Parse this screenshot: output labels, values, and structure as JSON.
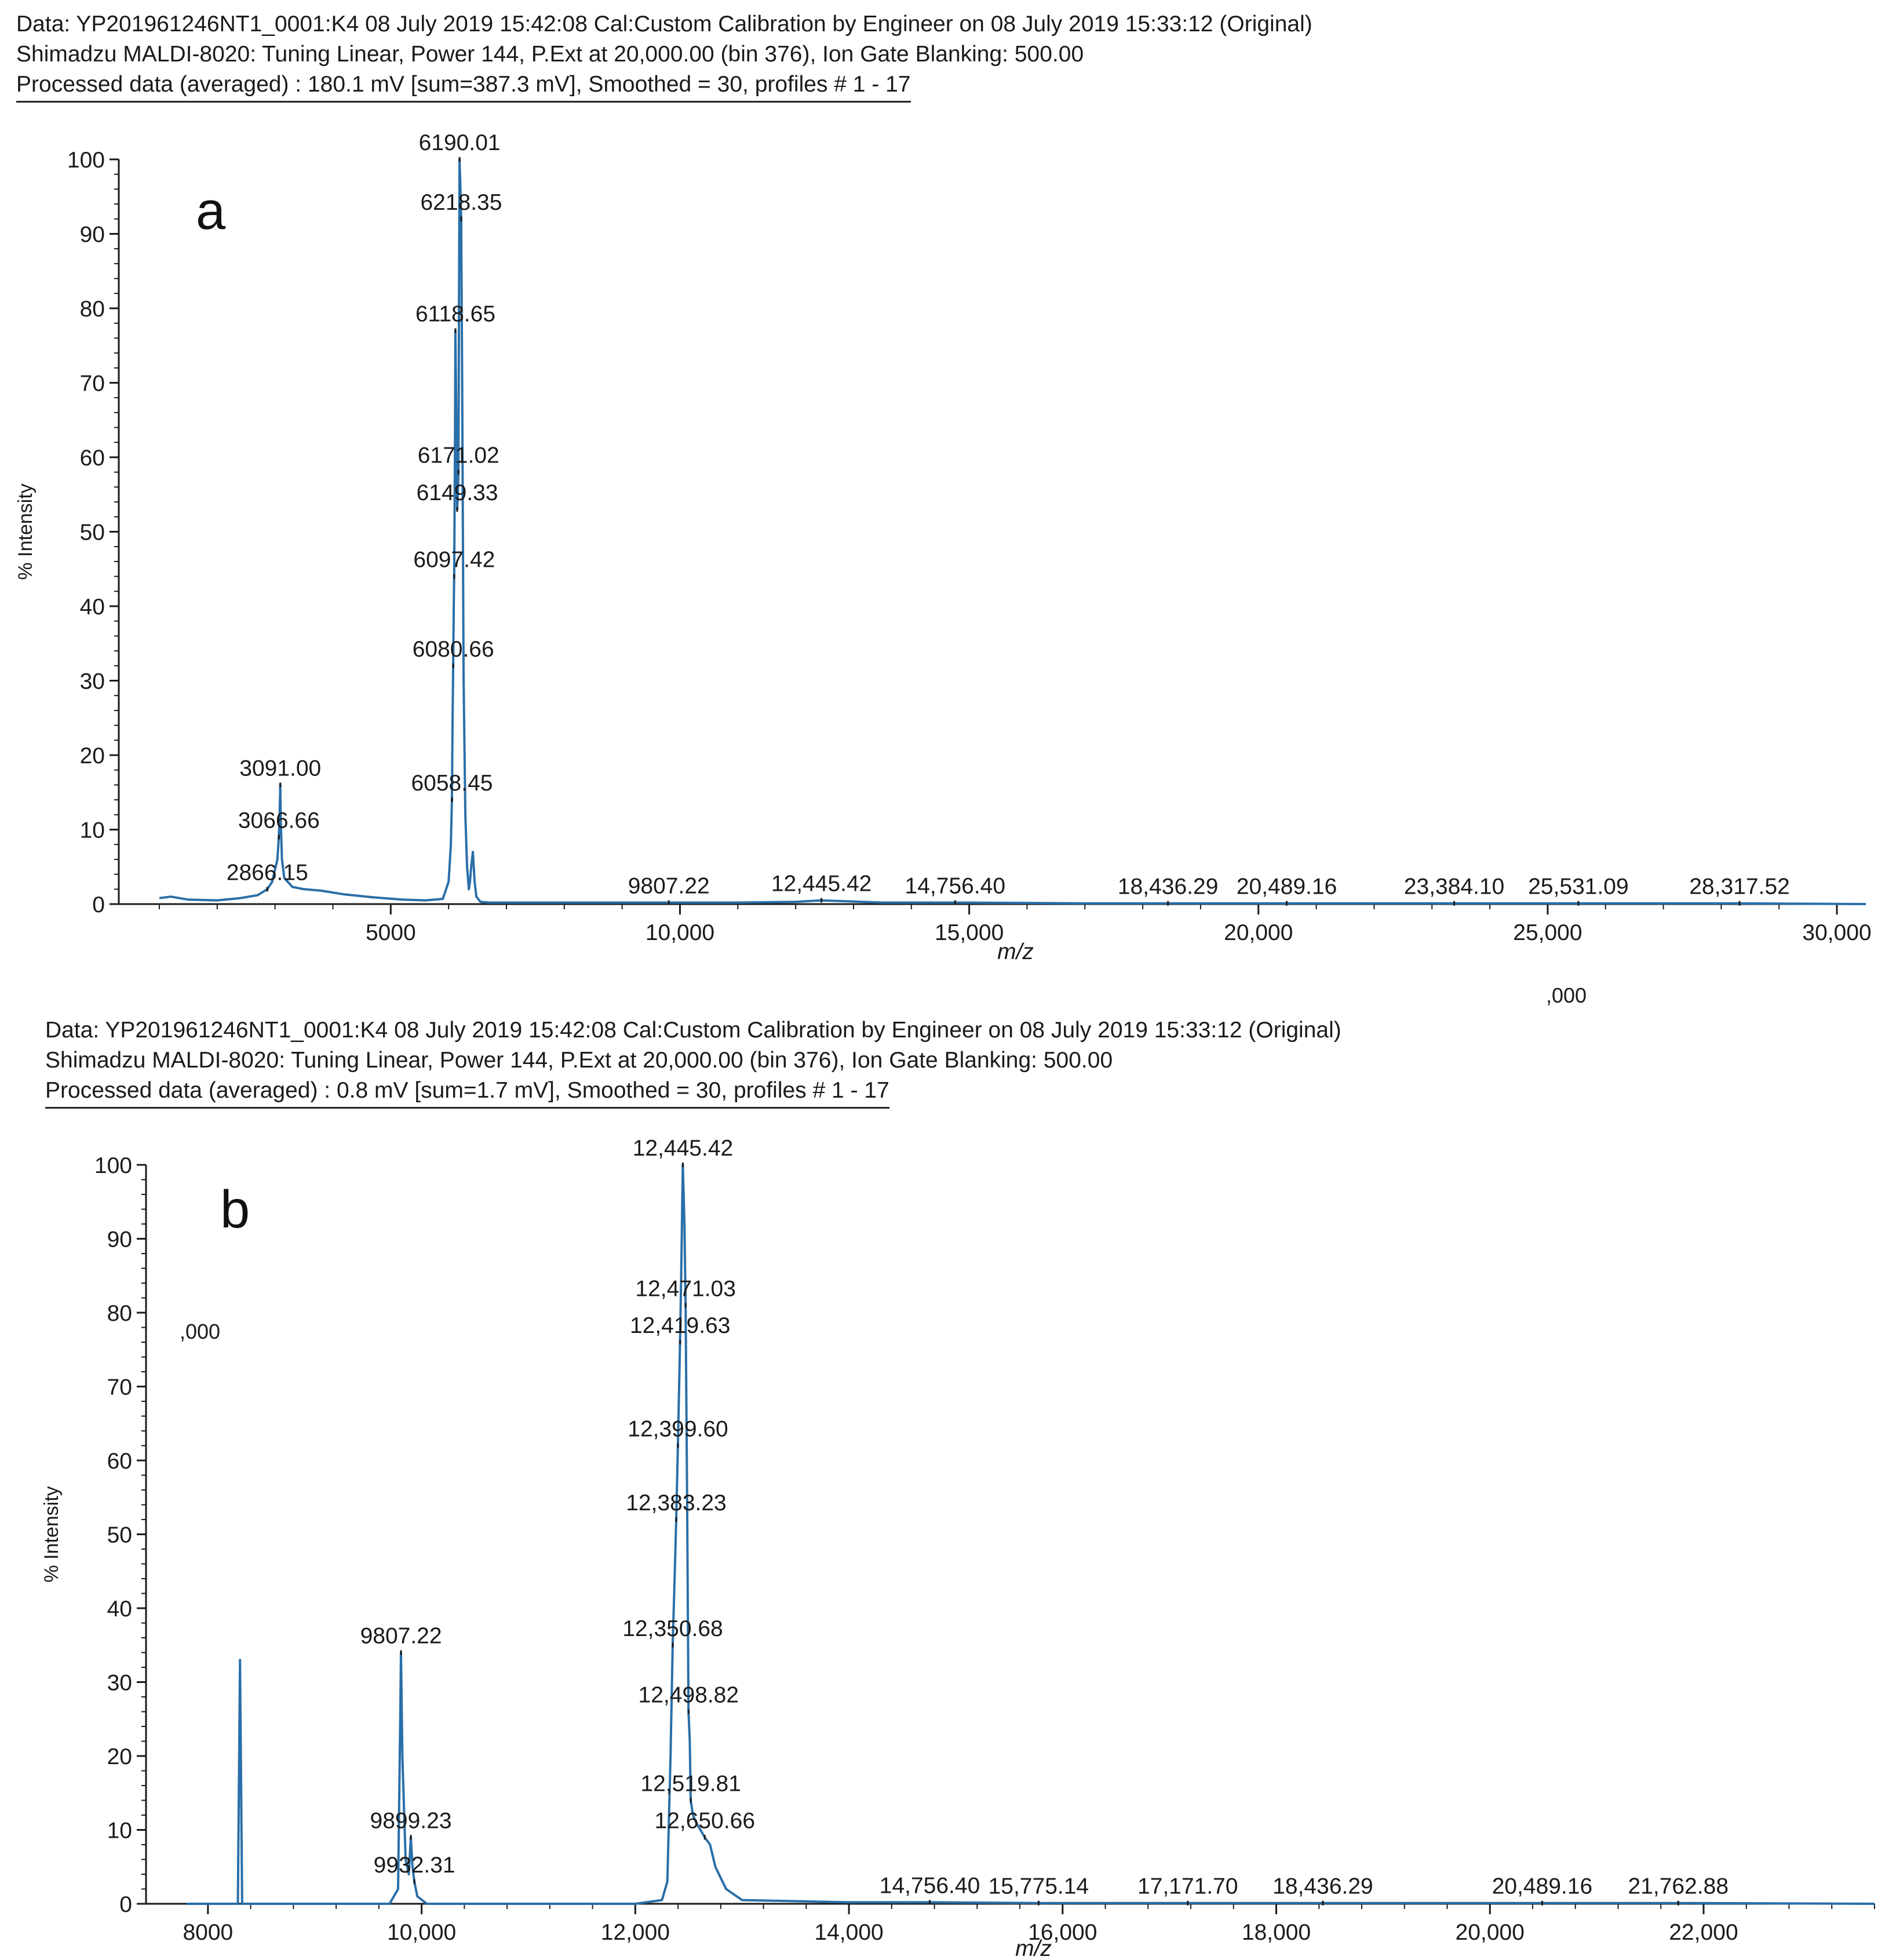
{
  "chart_data": [
    {
      "type": "line",
      "panel_label": "a",
      "header": {
        "data_line": "Data: YP201961246NT1_0001:K4 08 July 2019 15:42:08 Cal:Custom Calibration  by Engineer on 08 July 2019 15:33:12 (Original)",
        "instrument_line": "Shimadzu MALDI-8020: Tuning Linear, Power 144, P.Ext at 20,000.00 (bin 376), Ion Gate Blanking: 500.00",
        "processed_line": "Processed data (averaged) : 180.1 mV [sum=387.3 mV], Smoothed = 30, profiles # 1 - 17"
      },
      "xlabel": "m/z",
      "ylabel": "% Intensity",
      "xlim": [
        1000,
        30500
      ],
      "ylim": [
        0,
        100
      ],
      "x_ticks": [
        5000,
        10000,
        15000,
        20000,
        25000,
        30000
      ],
      "x_tick_labels": [
        "5000",
        "10,000",
        "15,000",
        "20,000",
        "25,000",
        "30,000"
      ],
      "y_ticks": [
        0,
        10,
        20,
        30,
        40,
        50,
        60,
        70,
        80,
        90,
        100
      ],
      "y_tick_labels": [
        "0",
        "10",
        "20",
        "30",
        "40",
        "50",
        "60",
        "70",
        "80",
        "90",
        "100"
      ],
      "series": [
        {
          "name": "spectrum",
          "color": "#2a6fa8",
          "x": [
            1000,
            1200,
            1500,
            2000,
            2400,
            2700,
            2866,
            2950,
            3040,
            3066,
            3080,
            3091,
            3100,
            3120,
            3160,
            3300,
            3500,
            3800,
            4200,
            4700,
            5200,
            5600,
            5900,
            6000,
            6040,
            6058,
            6070,
            6080,
            6090,
            6097,
            6110,
            6118,
            6130,
            6149,
            6160,
            6171,
            6180,
            6190,
            6205,
            6218,
            6235,
            6260,
            6290,
            6320,
            6350,
            6370,
            6390,
            6420,
            6450,
            6480,
            6550,
            6700,
            7500,
            9000,
            9807,
            11000,
            12000,
            12445,
            13500,
            14756,
            17000,
            18436,
            20489,
            22000,
            23384,
            25531,
            28317,
            30500
          ],
          "values": [
            0.8,
            1.0,
            0.6,
            0.5,
            0.8,
            1.2,
            2.0,
            3.0,
            6.0,
            9.0,
            12.0,
            16.0,
            11.0,
            6.0,
            3.5,
            2.3,
            2.0,
            1.8,
            1.3,
            0.9,
            0.6,
            0.5,
            0.7,
            3.0,
            8.0,
            14.0,
            25.0,
            32.0,
            40.0,
            44.0,
            60.0,
            77.0,
            68.0,
            53.0,
            55.0,
            58.0,
            80.0,
            100.0,
            96.0,
            92.0,
            70.0,
            30.0,
            12.0,
            5.0,
            2.0,
            3.0,
            5.0,
            7.0,
            3.0,
            1.0,
            0.3,
            0.2,
            0.2,
            0.2,
            0.2,
            0.2,
            0.3,
            0.5,
            0.2,
            0.2,
            0.1,
            0.1,
            0.1,
            0.1,
            0.1,
            0.1,
            0.1,
            0.0
          ]
        }
      ],
      "peak_labels": [
        {
          "x": 6190.01,
          "y": 100,
          "text": "6190.01"
        },
        {
          "x": 6218.35,
          "y": 92,
          "text": "6218.35"
        },
        {
          "x": 6118.65,
          "y": 77,
          "text": "6118.65"
        },
        {
          "x": 6171.02,
          "y": 58,
          "text": "6171.02"
        },
        {
          "x": 6149.33,
          "y": 53,
          "text": "6149.33"
        },
        {
          "x": 6097.42,
          "y": 44,
          "text": "6097.42"
        },
        {
          "x": 6080.66,
          "y": 32,
          "text": "6080.66"
        },
        {
          "x": 6058.45,
          "y": 14,
          "text": "6058.45"
        },
        {
          "x": 3091.0,
          "y": 16,
          "text": "3091.00"
        },
        {
          "x": 3066.66,
          "y": 9,
          "text": "3066.66"
        },
        {
          "x": 2866.15,
          "y": 2,
          "text": "2866.15"
        },
        {
          "x": 9807.22,
          "y": 0.2,
          "text": "9807.22"
        },
        {
          "x": 12445.42,
          "y": 0.5,
          "text": "12,445.42"
        },
        {
          "x": 14756.4,
          "y": 0.2,
          "text": "14,756.40"
        },
        {
          "x": 18436.29,
          "y": 0.1,
          "text": "18,436.29"
        },
        {
          "x": 20489.16,
          "y": 0.1,
          "text": "20,489.16"
        },
        {
          "x": 23384.1,
          "y": 0.1,
          "text": "23,384.10"
        },
        {
          "x": 25531.09,
          "y": 0.1,
          "text": "25,531.09"
        },
        {
          "x": 28317.52,
          "y": 0.1,
          "text": "28,317.52"
        }
      ],
      "stray_text": ",000"
    },
    {
      "type": "line",
      "panel_label": "b",
      "header": {
        "data_line": "Data: YP201961246NT1_0001:K4 08 July 2019 15:42:08 Cal:Custom Calibration  by Engineer on 08 July 2019 15:33:12 (Original)",
        "instrument_line": "Shimadzu MALDI-8020: Tuning Linear, Power 144, P.Ext at 20,000.00 (bin 376), Ion Gate Blanking: 500.00",
        "processed_line": "Processed data (averaged) : 0.8 mV [sum=1.7 mV], Smoothed = 30, profiles # 1 - 17"
      },
      "xlabel": "m/z",
      "ylabel": "% Intensity",
      "xlim": [
        7800,
        23600
      ],
      "ylim": [
        0,
        100
      ],
      "x_ticks": [
        8000,
        10000,
        12000,
        14000,
        16000,
        18000,
        20000,
        22000
      ],
      "x_tick_labels": [
        "8000",
        "10,000",
        "12,000",
        "14,000",
        "16,000",
        "18,000",
        "20,000",
        "22,000"
      ],
      "y_ticks": [
        0,
        10,
        20,
        30,
        40,
        50,
        60,
        70,
        80,
        90,
        100
      ],
      "y_tick_labels": [
        "0",
        "10",
        "20",
        "30",
        "40",
        "50",
        "60",
        "70",
        "80",
        "90",
        "100"
      ],
      "series": [
        {
          "name": "spectrum",
          "color": "#2a6fa8",
          "x": [
            7800,
            7970,
            8280,
            8300,
            8320,
            8350,
            9000,
            9700,
            9780,
            9800,
            9807,
            9820,
            9850,
            9880,
            9899,
            9915,
            9932,
            9960,
            10050,
            11000,
            12000,
            12250,
            12300,
            12330,
            12350,
            12370,
            12383,
            12399,
            12419,
            12430,
            12445,
            12460,
            12471,
            12485,
            12498,
            12510,
            12519,
            12540,
            12570,
            12610,
            12650,
            12700,
            12750,
            12850,
            13000,
            14000,
            14756,
            15775,
            17171,
            18436,
            20489,
            21762,
            23600
          ],
          "values": [
            0,
            0,
            0,
            33,
            0,
            0,
            0,
            0,
            2,
            25,
            34,
            20,
            6,
            4,
            9,
            5,
            3,
            1,
            0,
            0,
            0,
            0.5,
            3,
            20,
            35,
            45,
            52,
            62,
            76,
            85,
            100,
            92,
            81,
            55,
            26,
            22,
            14,
            12,
            11,
            10,
            9,
            8,
            5,
            2,
            0.5,
            0.2,
            0.2,
            0.1,
            0.1,
            0.1,
            0.1,
            0.1,
            0
          ]
        }
      ],
      "peak_labels": [
        {
          "x": 12445.42,
          "y": 100,
          "text": "12,445.42"
        },
        {
          "x": 12471.03,
          "y": 81,
          "text": "12,471.03"
        },
        {
          "x": 12419.63,
          "y": 76,
          "text": "12,419.63"
        },
        {
          "x": 12399.6,
          "y": 62,
          "text": "12,399.60"
        },
        {
          "x": 12383.23,
          "y": 52,
          "text": "12,383.23"
        },
        {
          "x": 12350.68,
          "y": 35,
          "text": "12,350.68"
        },
        {
          "x": 12498.82,
          "y": 26,
          "text": "12,498.82"
        },
        {
          "x": 12519.81,
          "y": 14,
          "text": "12,519.81"
        },
        {
          "x": 12650.66,
          "y": 9,
          "text": "12,650.66"
        },
        {
          "x": 9807.22,
          "y": 34,
          "text": "9807.22"
        },
        {
          "x": 9899.23,
          "y": 9,
          "text": "9899.23"
        },
        {
          "x": 9932.31,
          "y": 3,
          "text": "9932.31"
        },
        {
          "x": 14756.4,
          "y": 0.2,
          "text": "14,756.40"
        },
        {
          "x": 15775.14,
          "y": 0.1,
          "text": "15,775.14"
        },
        {
          "x": 17171.7,
          "y": 0.1,
          "text": "17,171.70"
        },
        {
          "x": 18436.29,
          "y": 0.1,
          "text": "18,436.29"
        },
        {
          "x": 20489.16,
          "y": 0.1,
          "text": "20,489.16"
        },
        {
          "x": 21762.88,
          "y": 0.1,
          "text": "21,762.88"
        }
      ],
      "stray_text": ",000"
    }
  ]
}
